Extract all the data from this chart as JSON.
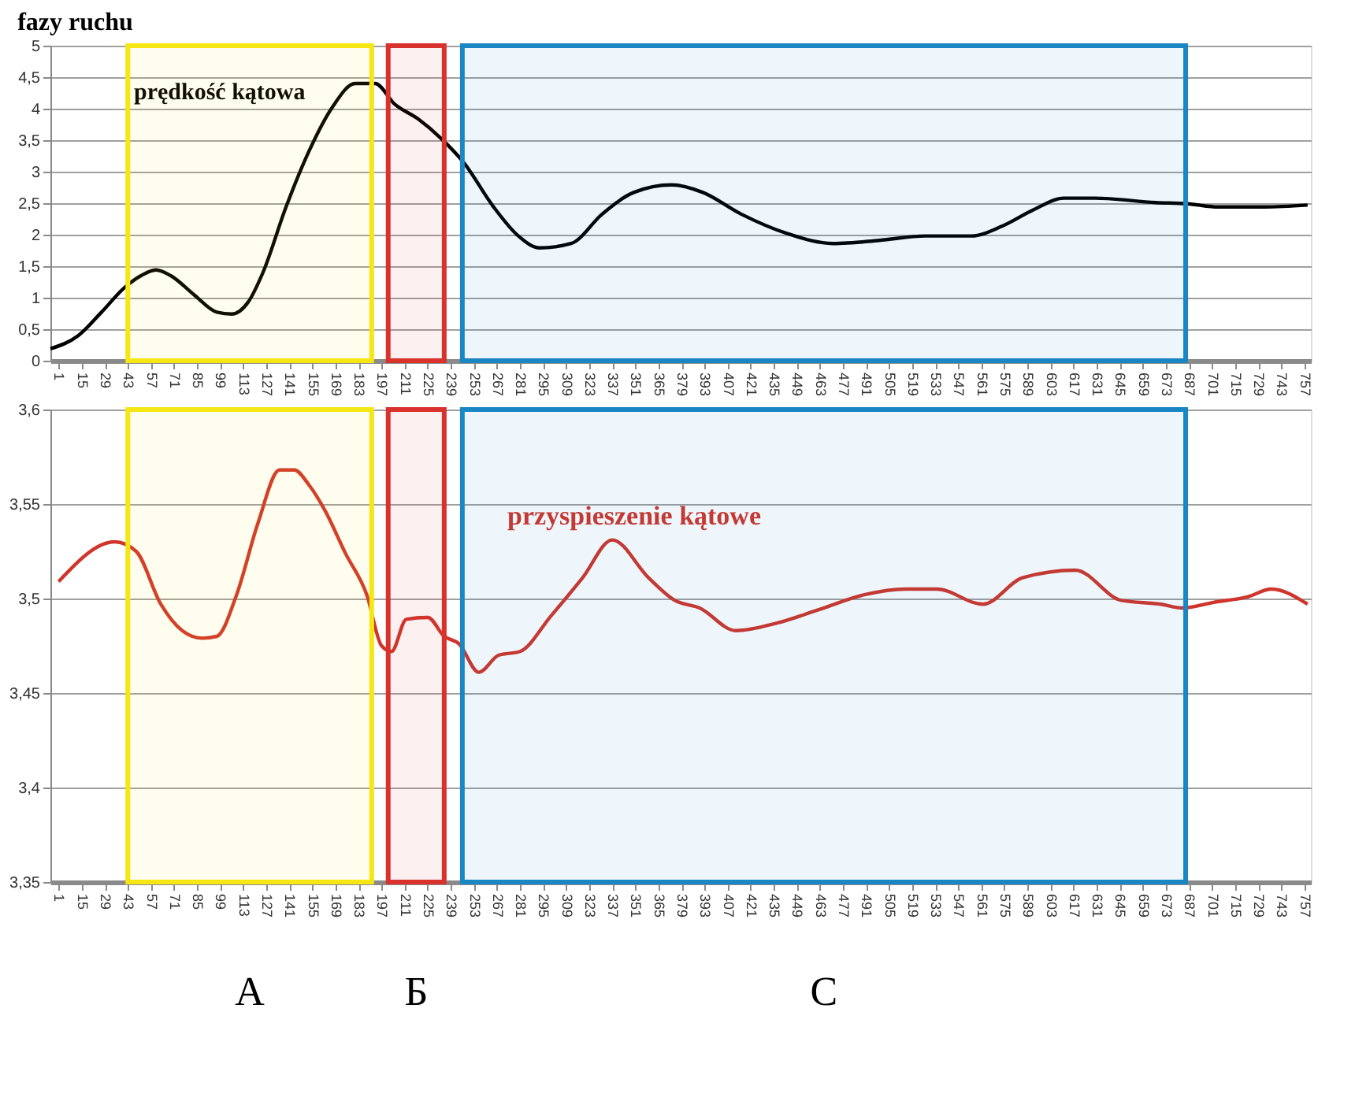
{
  "chart_data": [
    {
      "type": "line",
      "title": "fazy ruchu",
      "xlim": [
        -4,
        761
      ],
      "xticks": [
        1,
        15,
        29,
        43,
        57,
        71,
        85,
        99,
        113,
        127,
        141,
        155,
        169,
        183,
        197,
        211,
        225,
        239,
        253,
        267,
        281,
        295,
        309,
        323,
        337,
        351,
        365,
        379,
        393,
        407,
        421,
        435,
        449,
        463,
        477,
        491,
        505,
        519,
        533,
        547,
        561,
        575,
        589,
        603,
        617,
        631,
        645,
        659,
        673,
        687,
        701,
        715,
        729,
        743,
        757
      ],
      "ylim": [
        0,
        5
      ],
      "yticks": [
        0,
        {
          "value": 0.5,
          "label": "0,5"
        },
        1,
        {
          "value": 1.5,
          "label": "1,5"
        },
        2,
        {
          "value": 2.5,
          "label": "2,5"
        },
        3,
        {
          "value": 3.5,
          "label": "3,5"
        },
        4,
        {
          "value": 4.5,
          "label": "4,5"
        },
        5
      ],
      "grid": "y",
      "series": [
        {
          "name": "prędkość kątowa",
          "color": "#000000",
          "x": [
            -4,
            13,
            27,
            41,
            51,
            60,
            69,
            83,
            97,
            106,
            116,
            125,
            139,
            153,
            167,
            181,
            193,
            205,
            219,
            233,
            247,
            265,
            280,
            293,
            312,
            331,
            350,
            373,
            392,
            415,
            443,
            471,
            499,
            527,
            555,
            574,
            593,
            611,
            630,
            667,
            686,
            705,
            733,
            759
          ],
          "values": [
            0.19,
            0.4,
            0.77,
            1.16,
            1.35,
            1.44,
            1.35,
            1.05,
            0.77,
            0.74,
            0.93,
            1.4,
            2.44,
            3.33,
            4.02,
            4.4,
            4.4,
            4.07,
            3.84,
            3.53,
            3.14,
            2.44,
            1.98,
            1.79,
            1.86,
            2.33,
            2.67,
            2.79,
            2.67,
            2.33,
            2.02,
            1.86,
            1.91,
            1.98,
            1.98,
            2.14,
            2.4,
            2.58,
            2.58,
            2.51,
            2.49,
            2.44,
            2.44,
            2.47
          ]
        }
      ],
      "bands": [
        {
          "axis": "x",
          "from": 43,
          "to": 191,
          "color": "#f5e614"
        },
        {
          "axis": "x",
          "from": 201,
          "to": 235,
          "color": "#d9312b"
        },
        {
          "axis": "x",
          "from": 246,
          "to": 685,
          "color": "#1b86c4"
        }
      ]
    },
    {
      "type": "line",
      "xlim": [
        -4,
        761
      ],
      "xticks": [
        1,
        15,
        29,
        43,
        57,
        71,
        85,
        99,
        113,
        127,
        141,
        155,
        169,
        183,
        197,
        211,
        225,
        239,
        253,
        267,
        281,
        295,
        309,
        323,
        337,
        351,
        365,
        379,
        393,
        407,
        421,
        435,
        449,
        463,
        477,
        491,
        505,
        519,
        533,
        547,
        561,
        575,
        589,
        603,
        617,
        631,
        645,
        659,
        673,
        687,
        701,
        715,
        729,
        743,
        757
      ],
      "ylim": [
        3.35,
        3.6
      ],
      "yticks": [
        {
          "value": 3.35,
          "label": "3,35"
        },
        {
          "value": 3.4,
          "label": "3,4"
        },
        {
          "value": 3.45,
          "label": "3,45"
        },
        {
          "value": 3.5,
          "label": "3,5"
        },
        {
          "value": 3.55,
          "label": "3,55"
        },
        {
          "value": 3.6,
          "label": "3,6"
        }
      ],
      "grid": "y",
      "series": [
        {
          "name": "przyspieszenie kątowe",
          "color": "#d0352b",
          "x": [
            1,
            35,
            48,
            63,
            76,
            88,
            97,
            109,
            122,
            135,
            144,
            153,
            163,
            175,
            188,
            197,
            203,
            212,
            225,
            235,
            244,
            256,
            268,
            281,
            300,
            319,
            337,
            359,
            375,
            390,
            412,
            437,
            462,
            490,
            515,
            534,
            562,
            586,
            618,
            646,
            670,
            683,
            702,
            723,
            737,
            759
          ],
          "values": [
            3.509,
            3.53,
            3.525,
            3.497,
            3.483,
            3.479,
            3.48,
            3.502,
            3.54,
            3.568,
            3.568,
            3.56,
            3.546,
            3.524,
            3.502,
            3.475,
            3.472,
            3.489,
            3.49,
            3.48,
            3.476,
            3.461,
            3.47,
            3.472,
            3.491,
            3.511,
            3.531,
            3.511,
            3.499,
            3.495,
            3.483,
            3.487,
            3.494,
            3.502,
            3.505,
            3.505,
            3.497,
            3.511,
            3.515,
            3.499,
            3.497,
            3.495,
            3.498,
            3.501,
            3.505,
            3.497
          ]
        }
      ],
      "bands": [
        {
          "axis": "x",
          "from": 43,
          "to": 191,
          "color": "#f5e614",
          "label": "A"
        },
        {
          "axis": "x",
          "from": 201,
          "to": 235,
          "color": "#d9312b",
          "label": "Б"
        },
        {
          "axis": "x",
          "from": 246,
          "to": 685,
          "color": "#1b86c4",
          "label": "C"
        }
      ]
    }
  ]
}
